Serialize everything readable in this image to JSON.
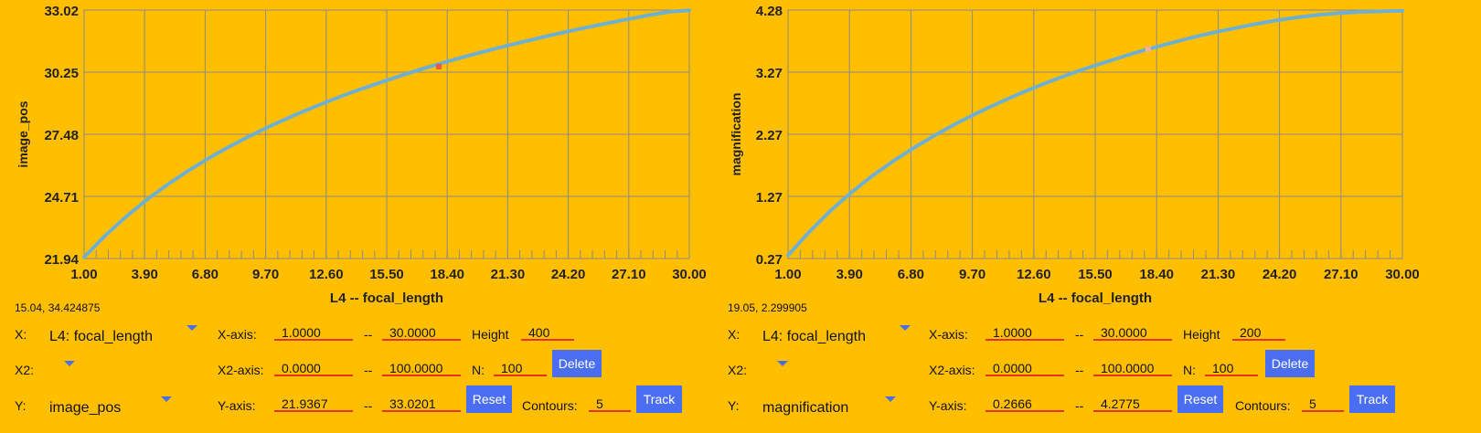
{
  "chart_data": [
    {
      "type": "line",
      "xlabel": "L4 -- focal_length",
      "ylabel": "image_pos",
      "xlim": [
        1.0,
        30.0
      ],
      "ylim": [
        21.94,
        33.02
      ],
      "x_ticks": [
        "1.00",
        "3.90",
        "6.80",
        "9.70",
        "12.60",
        "15.50",
        "18.40",
        "21.30",
        "24.20",
        "27.10",
        "30.00"
      ],
      "y_ticks": [
        "21.94",
        "24.71",
        "27.48",
        "30.25",
        "33.02"
      ],
      "grid": true,
      "series": [
        {
          "x": [
            1,
            2,
            3,
            4,
            5,
            6,
            7,
            8,
            9,
            10,
            11,
            12,
            13,
            14,
            15,
            16,
            17,
            18,
            19,
            20,
            21,
            22,
            23,
            24,
            25,
            26,
            27,
            28,
            29,
            30
          ],
          "y": [
            22.0,
            22.95,
            23.8,
            24.56,
            25.24,
            25.86,
            26.43,
            26.95,
            27.43,
            27.88,
            28.3,
            28.69,
            29.06,
            29.41,
            29.73,
            30.04,
            30.34,
            30.62,
            30.88,
            31.13,
            31.37,
            31.6,
            31.82,
            32.03,
            32.23,
            32.42,
            32.6,
            32.78,
            32.94,
            33.01
          ],
          "color": "#6FAFCF"
        }
      ],
      "marker": {
        "x": 18.0,
        "y": 30.5,
        "color": "#E35A4A"
      }
    },
    {
      "type": "line",
      "xlabel": "L4 -- focal_length",
      "ylabel": "magnification",
      "xlim": [
        1.0,
        30.0
      ],
      "ylim": [
        0.27,
        4.28
      ],
      "x_ticks": [
        "1.00",
        "3.90",
        "6.80",
        "9.70",
        "12.60",
        "15.50",
        "18.40",
        "21.30",
        "24.20",
        "27.10",
        "30.00"
      ],
      "y_ticks": [
        "0.27",
        "1.27",
        "2.27",
        "3.27",
        "4.28"
      ],
      "grid": true,
      "series": [
        {
          "x": [
            1,
            2,
            3,
            4,
            5,
            6,
            7,
            8,
            9,
            10,
            11,
            12,
            13,
            14,
            15,
            16,
            17,
            18,
            19,
            20,
            21,
            22,
            23,
            24,
            25,
            26,
            27,
            28,
            29,
            30
          ],
          "y": [
            0.32,
            0.7,
            1.04,
            1.34,
            1.61,
            1.85,
            2.07,
            2.27,
            2.46,
            2.63,
            2.79,
            2.94,
            3.08,
            3.21,
            3.33,
            3.44,
            3.55,
            3.65,
            3.74,
            3.83,
            3.91,
            3.98,
            4.05,
            4.11,
            4.16,
            4.2,
            4.23,
            4.25,
            4.26,
            4.27
          ],
          "color": "#6FAFCF"
        }
      ],
      "marker": {
        "x": 18.0,
        "y": 3.65,
        "color": "#F0B0A0"
      }
    }
  ],
  "panels": [
    {
      "coord": "15.04, 34.424875",
      "x_label": "X:",
      "x_value": "L4: focal_length",
      "x2_label": "X2:",
      "y_label": "Y:",
      "y_value": "image_pos",
      "xaxis_label": "X-axis:",
      "xaxis_min": "1.0000",
      "xaxis_max": "30.0000",
      "height_label": "Height",
      "height_value": "400",
      "x2axis_label": "X2-axis:",
      "x2axis_min": "0.0000",
      "x2axis_max": "100.0000",
      "n_label": "N:",
      "n_value": "100",
      "delete_label": "Delete",
      "yaxis_label": "Y-axis:",
      "yaxis_min": "21.9367",
      "yaxis_max": "33.0201",
      "reset_label": "Reset",
      "contours_label": "Contours:",
      "contours_value": "5",
      "track_label": "Track",
      "dash": "--"
    },
    {
      "coord": "19.05, 2.299905",
      "x_label": "X:",
      "x_value": "L4: focal_length",
      "x2_label": "X2:",
      "y_label": "Y:",
      "y_value": "magnification",
      "xaxis_label": "X-axis:",
      "xaxis_min": "1.0000",
      "xaxis_max": "30.0000",
      "height_label": "Height",
      "height_value": "200",
      "x2axis_label": "X2-axis:",
      "x2axis_min": "0.0000",
      "x2axis_max": "100.0000",
      "n_label": "N:",
      "n_value": "100",
      "delete_label": "Delete",
      "yaxis_label": "Y-axis:",
      "yaxis_min": "0.2666",
      "yaxis_max": "4.2775",
      "reset_label": "Reset",
      "contours_label": "Contours:",
      "contours_value": "5",
      "track_label": "Track",
      "dash": "--"
    }
  ]
}
